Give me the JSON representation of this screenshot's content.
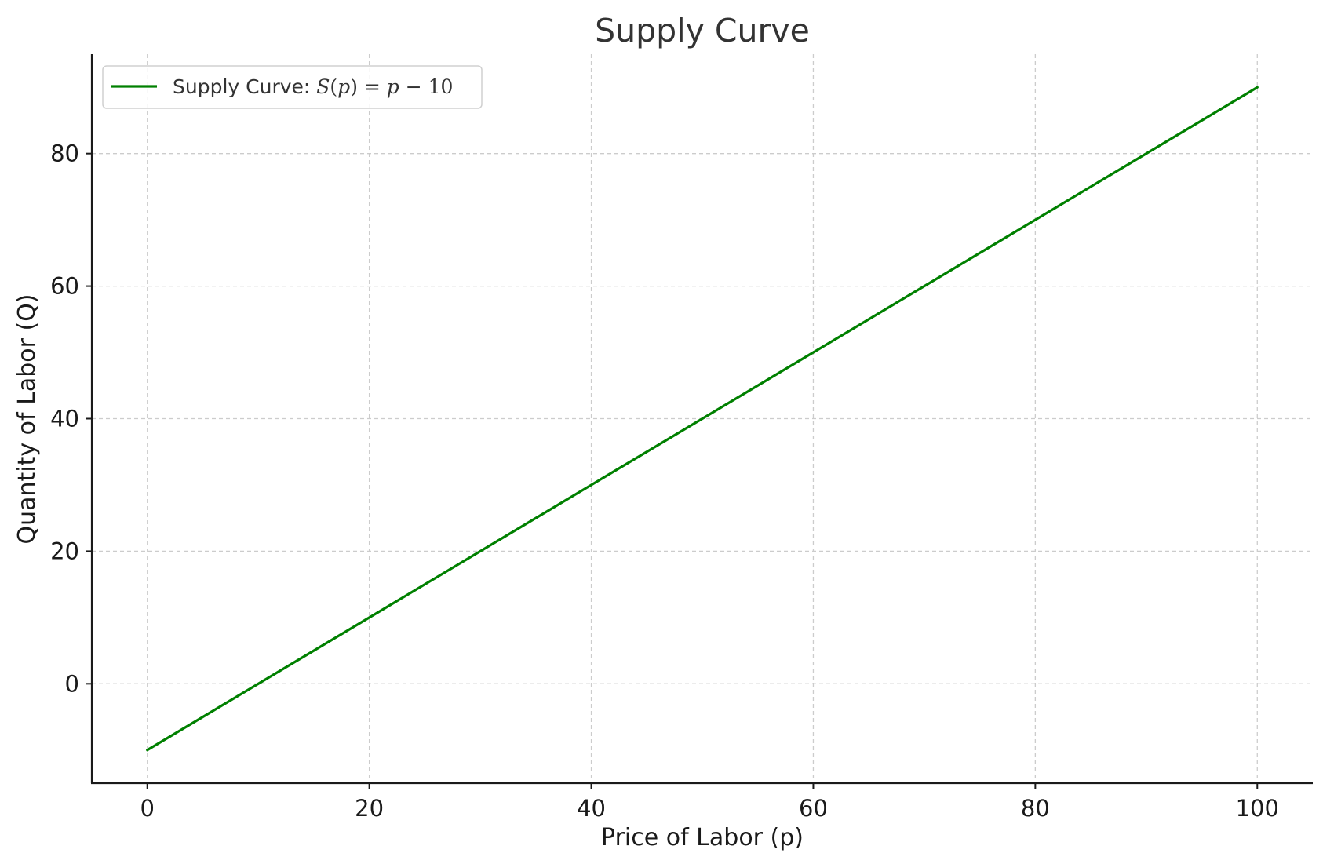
{
  "chart_data": {
    "type": "line",
    "title": "Supply Curve",
    "xlabel": "Price of Labor (p)",
    "ylabel": "Quantity of Labor (Q)",
    "xlim": [
      -5,
      105
    ],
    "ylim": [
      -15,
      95
    ],
    "xticks": [
      0,
      20,
      40,
      60,
      80,
      100
    ],
    "yticks": [
      0,
      20,
      40,
      60,
      80
    ],
    "xtick_labels": [
      "0",
      "20",
      "40",
      "60",
      "80",
      "100"
    ],
    "ytick_labels": [
      "0",
      "20",
      "40",
      "60",
      "80"
    ],
    "grid": true,
    "legend_position": "top-left",
    "series": [
      {
        "name": "Supply Curve: S(p) = p − 10",
        "legend_prefix": "Supply Curve: ",
        "legend_formula": {
          "fn": "S",
          "open": "(",
          "arg": "p",
          "close": ")",
          "eq": " = ",
          "var": "p",
          "minus": " − ",
          "const": "10"
        },
        "color": "#008000",
        "x": [
          0,
          100
        ],
        "y": [
          -10,
          90
        ]
      }
    ]
  }
}
